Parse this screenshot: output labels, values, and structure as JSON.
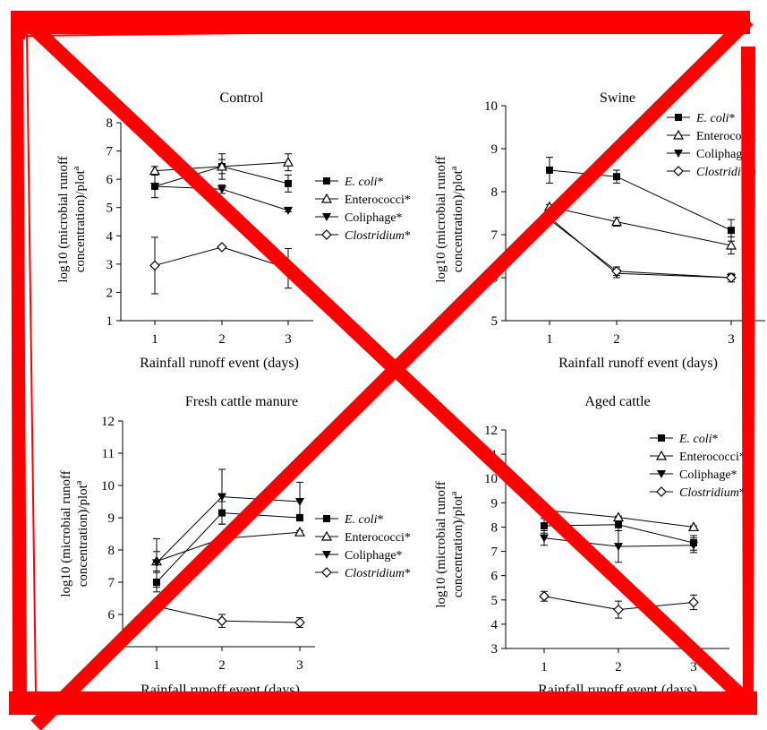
{
  "theme": {
    "cross_color": "#ff0000",
    "ink": "#000000"
  },
  "y_axis_label": [
    "log10 (microbial runoff",
    "concentration)/plot"
  ],
  "y_axis_label_superscript": "a",
  "x_axis_label": "Rainfall runoff event (days)",
  "chart_data": [
    {
      "type": "line",
      "title": "Control",
      "xlabel": "Rainfall runoff event (days)",
      "ylabel": "log10 (microbial runoff concentration)/plot a",
      "x": [
        1,
        2,
        3
      ],
      "xticks": [
        "1",
        "2",
        "3"
      ],
      "ylim": [
        1,
        8
      ],
      "yticks": [
        "1",
        "2",
        "3",
        "4",
        "5",
        "6",
        "7",
        "8"
      ],
      "legend_position": "right",
      "series": [
        {
          "name": "E. coli",
          "suffix": "*",
          "italic": true,
          "marker": "square",
          "values": [
            5.75,
            6.45,
            5.85
          ],
          "errors": [
            0.4,
            0.45,
            0.3
          ]
        },
        {
          "name": "Enterococci",
          "suffix": "*",
          "italic": false,
          "marker": "triangle-up",
          "values": [
            6.3,
            6.45,
            6.6
          ],
          "errors": [
            0.15,
            0.25,
            0.3
          ]
        },
        {
          "name": "Coliphage",
          "suffix": "*",
          "italic": false,
          "marker": "triangle-down",
          "values": [
            5.75,
            5.65,
            4.9
          ],
          "errors": [
            0.1,
            0.15,
            0.05
          ]
        },
        {
          "name": "Clostridium",
          "suffix": "*",
          "italic": true,
          "marker": "diamond",
          "values": [
            2.95,
            3.6,
            2.85
          ],
          "errors": [
            1.0,
            0.05,
            0.7
          ]
        }
      ]
    },
    {
      "type": "line",
      "title": "Swine",
      "xlabel": "Rainfall runoff event (days)",
      "ylabel": "log10 (microbial runoff concentration)/plot a",
      "x": [
        1,
        2,
        3
      ],
      "xticks": [
        "1",
        "2",
        "3"
      ],
      "ylim": [
        5,
        10
      ],
      "yticks": [
        "5",
        "6",
        "7",
        "8",
        "9",
        "10"
      ],
      "legend_position": "top-right",
      "series": [
        {
          "name": "E. coli",
          "suffix": "*",
          "italic": true,
          "marker": "square",
          "values": [
            8.5,
            8.35,
            7.1
          ],
          "errors": [
            0.3,
            0.15,
            0.25
          ]
        },
        {
          "name": "Enterococci",
          "suffix": "",
          "italic": false,
          "marker": "triangle-up",
          "values": [
            7.65,
            7.3,
            6.75
          ],
          "errors": [
            0.05,
            0.1,
            0.2
          ]
        },
        {
          "name": "Coliphage",
          "suffix": "",
          "italic": false,
          "marker": "triangle-down",
          "values": [
            7.4,
            6.1,
            6.0
          ],
          "errors": [
            0.05,
            0.1,
            0.05
          ]
        },
        {
          "name": "Clostridium",
          "suffix": "",
          "italic": true,
          "marker": "diamond",
          "values": [
            7.35,
            6.15,
            6.0
          ],
          "errors": [
            0.05,
            0.1,
            0.1
          ]
        }
      ]
    },
    {
      "type": "line",
      "title": "Fresh cattle manure",
      "xlabel": "Rainfall runoff event (days)",
      "ylabel": "log10 (microbial runoff concentration)/plot a",
      "x": [
        1,
        2,
        3
      ],
      "xticks": [
        "1",
        "2",
        "3"
      ],
      "ylim": [
        5,
        12
      ],
      "yticks": [
        "5",
        "6",
        "7",
        "8",
        "9",
        "10",
        "11",
        "12"
      ],
      "legend_position": "right",
      "series": [
        {
          "name": "E. coli",
          "suffix": "*",
          "italic": true,
          "marker": "square",
          "values": [
            7.0,
            9.15,
            9.0
          ],
          "errors": [
            0.3,
            0.35,
            0.1
          ]
        },
        {
          "name": "Enterococci",
          "suffix": "*",
          "italic": false,
          "marker": "triangle-up",
          "values": [
            7.65,
            8.35,
            8.55
          ],
          "errors": [
            0.3,
            0.1,
            0.05
          ]
        },
        {
          "name": "Coliphage",
          "suffix": "*",
          "italic": false,
          "marker": "triangle-down",
          "values": [
            7.6,
            9.65,
            9.5
          ],
          "errors": [
            0.75,
            0.85,
            0.6
          ]
        },
        {
          "name": "Clostridium",
          "suffix": "*",
          "italic": true,
          "marker": "diamond",
          "values": [
            6.25,
            5.8,
            5.75
          ],
          "errors": [
            0.1,
            0.2,
            0.15
          ]
        }
      ]
    },
    {
      "type": "line",
      "title": "Aged cattle",
      "xlabel": "Rainfall runoff event (days)",
      "ylabel": "log10 (microbial runoff concentration)/plot a",
      "x": [
        1,
        2,
        3
      ],
      "xticks": [
        "1",
        "2",
        "3"
      ],
      "ylim": [
        3,
        12
      ],
      "yticks": [
        "3",
        "4",
        "5",
        "6",
        "7",
        "8",
        "9",
        "10",
        "11",
        "12"
      ],
      "legend_position": "top-right",
      "series": [
        {
          "name": "E. coli",
          "suffix": "*",
          "italic": true,
          "marker": "square",
          "values": [
            8.05,
            8.1,
            7.35
          ],
          "errors": [
            0.3,
            0.25,
            0.3
          ]
        },
        {
          "name": "Enterococci",
          "suffix": "*",
          "italic": false,
          "marker": "triangle-up",
          "values": [
            8.7,
            8.4,
            8.0
          ],
          "errors": [
            0.05,
            0.05,
            0.05
          ]
        },
        {
          "name": "Coliphage",
          "suffix": "*",
          "italic": false,
          "marker": "triangle-down",
          "values": [
            7.55,
            7.2,
            7.25
          ],
          "errors": [
            0.3,
            0.65,
            0.3
          ]
        },
        {
          "name": "Clostridium",
          "suffix": "*",
          "italic": true,
          "marker": "diamond",
          "values": [
            5.15,
            4.6,
            4.9
          ],
          "errors": [
            0.2,
            0.35,
            0.3
          ]
        }
      ]
    }
  ]
}
